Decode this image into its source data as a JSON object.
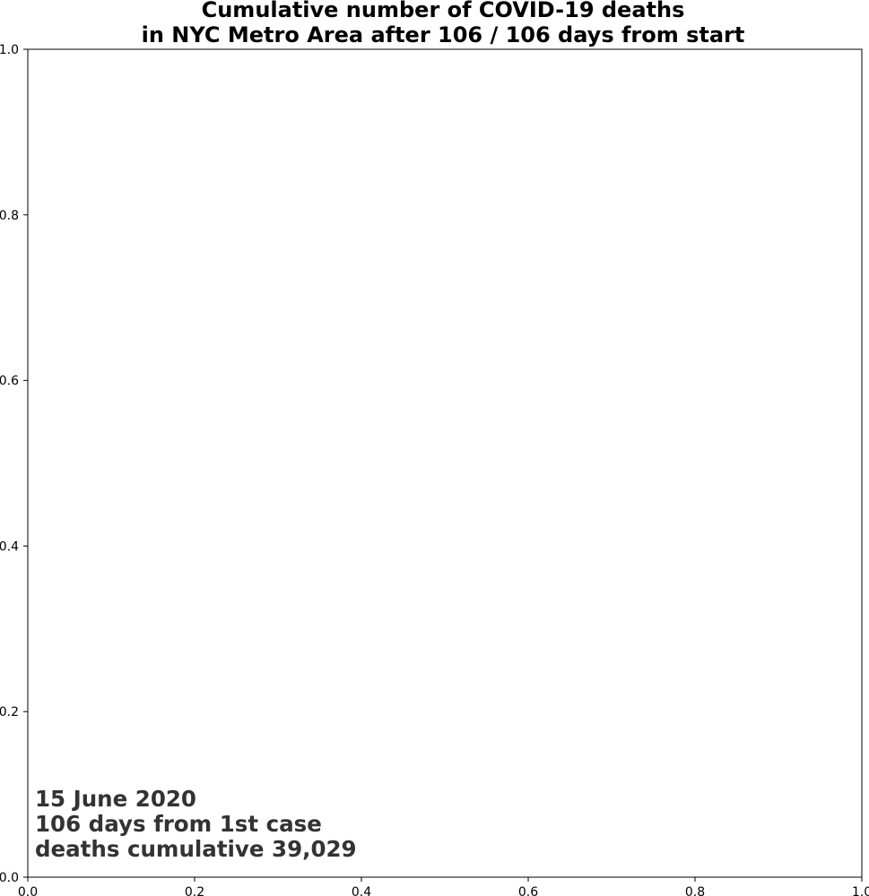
{
  "chart_data": {
    "type": "line",
    "title": "Cumulative number of COVID-19 deaths",
    "subtitle": "in NYC Metro Area after 106 / 106 days from start",
    "xlabel": "",
    "ylabel": "",
    "xlim": [
      0,
      1
    ],
    "ylim": [
      0,
      1
    ],
    "x_ticks": [
      "0.0",
      "0.2",
      "0.4",
      "0.6",
      "0.8",
      "1.0"
    ],
    "y_ticks": [
      "0.0",
      "0.2",
      "0.4",
      "0.6",
      "0.8",
      "1.0"
    ],
    "grid": false,
    "series": [],
    "annotation": {
      "date": "15 June 2020",
      "days": "106 days from 1st case",
      "deaths": "deaths cumulative 39,029"
    },
    "colors": {
      "annotation": "#333333",
      "axes": "#000000",
      "background": "#ffffff"
    }
  }
}
